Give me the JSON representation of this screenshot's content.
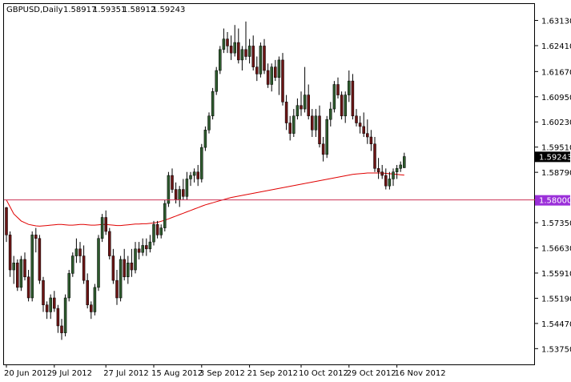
{
  "header": {
    "symbol": "GBPUSD,Daily",
    "open": "1.58917",
    "high": "1.59351",
    "low": "1.58912",
    "close": "1.59243"
  },
  "chart_data": {
    "type": "candlestick",
    "timeframe": "Daily",
    "ylim": [
      1.533,
      1.636
    ],
    "y_ticks": [
      "1.63130",
      "1.62410",
      "1.61670",
      "1.60950",
      "1.60230",
      "1.59510",
      "1.58790",
      "1.58070",
      "1.57350",
      "1.56630",
      "1.55910",
      "1.55190",
      "1.54470",
      "1.53750"
    ],
    "x_ticks": [
      {
        "label": "20 Jun 2012",
        "index": 0
      },
      {
        "label": "9 Jul 2012",
        "index": 13
      },
      {
        "label": "27 Jul 2012",
        "index": 27
      },
      {
        "label": "15 Aug 2012",
        "index": 40
      },
      {
        "label": "3 Sep 2012",
        "index": 53
      },
      {
        "label": "21 Sep 2012",
        "index": 66
      },
      {
        "label": "10 Oct 2012",
        "index": 80
      },
      {
        "label": "29 Oct 2012",
        "index": 93
      },
      {
        "label": "16 Nov 2012",
        "index": 106
      }
    ],
    "current_price": {
      "label": "1.59243",
      "value": 1.59243
    },
    "horizontal_line": {
      "label": "1.58000",
      "value": 1.58
    },
    "colors": {
      "up": "#2d5a2d",
      "down": "#6b1414",
      "ma": "#e00000",
      "line": "#cc3355",
      "line_label_bg": "#9b30d9"
    },
    "candles": [
      [
        1.5778,
        1.578,
        1.568,
        1.57
      ],
      [
        1.57,
        1.571,
        1.558,
        1.56
      ],
      [
        1.56,
        1.564,
        1.556,
        1.562
      ],
      [
        1.562,
        1.563,
        1.554,
        1.555
      ],
      [
        1.555,
        1.564,
        1.554,
        1.563
      ],
      [
        1.563,
        1.565,
        1.557,
        1.558
      ],
      [
        1.558,
        1.56,
        1.551,
        1.552
      ],
      [
        1.552,
        1.571,
        1.551,
        1.57
      ],
      [
        1.57,
        1.572,
        1.565,
        1.569
      ],
      [
        1.569,
        1.57,
        1.556,
        1.557
      ],
      [
        1.557,
        1.558,
        1.548,
        1.55
      ],
      [
        1.55,
        1.551,
        1.546,
        1.548
      ],
      [
        1.548,
        1.553,
        1.546,
        1.552
      ],
      [
        1.552,
        1.554,
        1.548,
        1.549
      ],
      [
        1.549,
        1.55,
        1.542,
        1.544
      ],
      [
        1.544,
        1.546,
        1.54,
        1.542
      ],
      [
        1.542,
        1.553,
        1.541,
        1.552
      ],
      [
        1.552,
        1.56,
        1.551,
        1.559
      ],
      [
        1.559,
        1.565,
        1.558,
        1.564
      ],
      [
        1.564,
        1.569,
        1.562,
        1.566
      ],
      [
        1.566,
        1.568,
        1.562,
        1.564
      ],
      [
        1.564,
        1.567,
        1.556,
        1.557
      ],
      [
        1.557,
        1.559,
        1.549,
        1.55
      ],
      [
        1.55,
        1.551,
        1.546,
        1.548
      ],
      [
        1.548,
        1.556,
        1.547,
        1.555
      ],
      [
        1.555,
        1.57,
        1.554,
        1.569
      ],
      [
        1.569,
        1.576,
        1.568,
        1.575
      ],
      [
        1.575,
        1.577,
        1.57,
        1.571
      ],
      [
        1.571,
        1.572,
        1.563,
        1.564
      ],
      [
        1.564,
        1.566,
        1.556,
        1.557
      ],
      [
        1.557,
        1.56,
        1.55,
        1.552
      ],
      [
        1.552,
        1.564,
        1.551,
        1.563
      ],
      [
        1.563,
        1.566,
        1.557,
        1.558
      ],
      [
        1.558,
        1.564,
        1.556,
        1.562
      ],
      [
        1.562,
        1.566,
        1.558,
        1.56
      ],
      [
        1.56,
        1.568,
        1.559,
        1.566
      ],
      [
        1.566,
        1.568,
        1.563,
        1.565
      ],
      [
        1.565,
        1.569,
        1.564,
        1.567
      ],
      [
        1.567,
        1.569,
        1.564,
        1.566
      ],
      [
        1.566,
        1.57,
        1.565,
        1.568
      ],
      [
        1.568,
        1.574,
        1.567,
        1.573
      ],
      [
        1.573,
        1.574,
        1.569,
        1.57
      ],
      [
        1.57,
        1.573,
        1.569,
        1.572
      ],
      [
        1.572,
        1.58,
        1.571,
        1.579
      ],
      [
        1.579,
        1.588,
        1.578,
        1.587
      ],
      [
        1.587,
        1.589,
        1.582,
        1.583
      ],
      [
        1.583,
        1.585,
        1.579,
        1.58
      ],
      [
        1.58,
        1.584,
        1.578,
        1.583
      ],
      [
        1.583,
        1.586,
        1.58,
        1.581
      ],
      [
        1.581,
        1.588,
        1.58,
        1.586
      ],
      [
        1.586,
        1.588,
        1.584,
        1.587
      ],
      [
        1.587,
        1.589,
        1.585,
        1.588
      ],
      [
        1.588,
        1.59,
        1.584,
        1.586
      ],
      [
        1.586,
        1.596,
        1.585,
        1.595
      ],
      [
        1.595,
        1.601,
        1.594,
        1.6
      ],
      [
        1.6,
        1.605,
        1.599,
        1.604
      ],
      [
        1.604,
        1.612,
        1.603,
        1.611
      ],
      [
        1.611,
        1.618,
        1.61,
        1.617
      ],
      [
        1.617,
        1.624,
        1.616,
        1.623
      ],
      [
        1.623,
        1.629,
        1.622,
        1.626
      ],
      [
        1.626,
        1.628,
        1.622,
        1.624
      ],
      [
        1.624,
        1.627,
        1.62,
        1.622
      ],
      [
        1.622,
        1.63,
        1.621,
        1.625
      ],
      [
        1.625,
        1.629,
        1.619,
        1.62
      ],
      [
        1.62,
        1.624,
        1.617,
        1.623
      ],
      [
        1.623,
        1.631,
        1.62,
        1.621
      ],
      [
        1.621,
        1.626,
        1.619,
        1.624
      ],
      [
        1.624,
        1.627,
        1.617,
        1.618
      ],
      [
        1.618,
        1.621,
        1.614,
        1.616
      ],
      [
        1.616,
        1.625,
        1.615,
        1.624
      ],
      [
        1.624,
        1.626,
        1.616,
        1.617
      ],
      [
        1.617,
        1.619,
        1.612,
        1.613
      ],
      [
        1.613,
        1.619,
        1.611,
        1.618
      ],
      [
        1.618,
        1.62,
        1.614,
        1.615
      ],
      [
        1.615,
        1.621,
        1.61,
        1.62
      ],
      [
        1.62,
        1.622,
        1.607,
        1.608
      ],
      [
        1.608,
        1.61,
        1.6,
        1.602
      ],
      [
        1.602,
        1.604,
        1.597,
        1.599
      ],
      [
        1.599,
        1.606,
        1.598,
        1.604
      ],
      [
        1.604,
        1.609,
        1.603,
        1.607
      ],
      [
        1.607,
        1.611,
        1.604,
        1.606
      ],
      [
        1.606,
        1.618,
        1.605,
        1.61
      ],
      [
        1.61,
        1.613,
        1.603,
        1.604
      ],
      [
        1.604,
        1.606,
        1.598,
        1.6
      ],
      [
        1.6,
        1.606,
        1.598,
        1.604
      ],
      [
        1.604,
        1.607,
        1.595,
        1.596
      ],
      [
        1.596,
        1.598,
        1.591,
        1.593
      ],
      [
        1.593,
        1.604,
        1.592,
        1.603
      ],
      [
        1.603,
        1.608,
        1.601,
        1.606
      ],
      [
        1.606,
        1.614,
        1.605,
        1.613
      ],
      [
        1.613,
        1.615,
        1.609,
        1.61
      ],
      [
        1.61,
        1.611,
        1.603,
        1.604
      ],
      [
        1.604,
        1.611,
        1.602,
        1.61
      ],
      [
        1.61,
        1.617,
        1.608,
        1.614
      ],
      [
        1.614,
        1.616,
        1.603,
        1.604
      ],
      [
        1.604,
        1.606,
        1.601,
        1.602
      ],
      [
        1.602,
        1.604,
        1.599,
        1.601
      ],
      [
        1.601,
        1.605,
        1.598,
        1.599
      ],
      [
        1.599,
        1.603,
        1.596,
        1.598
      ],
      [
        1.598,
        1.6,
        1.594,
        1.596
      ],
      [
        1.596,
        1.598,
        1.588,
        1.589
      ],
      [
        1.589,
        1.592,
        1.586,
        1.588
      ],
      [
        1.588,
        1.59,
        1.586,
        1.587
      ],
      [
        1.587,
        1.589,
        1.583,
        1.584
      ],
      [
        1.584,
        1.588,
        1.583,
        1.586
      ],
      [
        1.586,
        1.589,
        1.584,
        1.588
      ],
      [
        1.588,
        1.59,
        1.586,
        1.589
      ],
      [
        1.589,
        1.591,
        1.588,
        1.59
      ],
      [
        1.5892,
        1.5935,
        1.5891,
        1.5924
      ]
    ],
    "moving_average": [
      1.58,
      1.578,
      1.576,
      1.575,
      1.574,
      1.5735,
      1.573,
      1.5728,
      1.5726,
      1.5725,
      1.5726,
      1.5727,
      1.5728,
      1.5729,
      1.573,
      1.573,
      1.5729,
      1.5728,
      1.5728,
      1.5729,
      1.573,
      1.573,
      1.5729,
      1.5728,
      1.5728,
      1.5729,
      1.573,
      1.573,
      1.5729,
      1.5728,
      1.5727,
      1.5727,
      1.5728,
      1.5729,
      1.573,
      1.5731,
      1.5731,
      1.5732,
      1.5732,
      1.5733,
      1.5734,
      1.5736,
      1.5739,
      1.5742,
      1.5746,
      1.575,
      1.5754,
      1.5758,
      1.5762,
      1.5766,
      1.577,
      1.5774,
      1.5778,
      1.5782,
      1.5786,
      1.5789,
      1.5792,
      1.5795,
      1.5798,
      1.5801,
      1.5804,
      1.5807,
      1.5809,
      1.5811,
      1.5813,
      1.5815,
      1.5817,
      1.5819,
      1.5821,
      1.5823,
      1.5825,
      1.5827,
      1.5829,
      1.5831,
      1.5833,
      1.5835,
      1.5837,
      1.5839,
      1.5841,
      1.5843,
      1.5845,
      1.5847,
      1.5849,
      1.5851,
      1.5853,
      1.5855,
      1.5857,
      1.5859,
      1.5861,
      1.5863,
      1.5865,
      1.5867,
      1.5869,
      1.5871,
      1.5873,
      1.5874,
      1.5875,
      1.5876,
      1.5877,
      1.5877,
      1.5877,
      1.5877,
      1.5877,
      1.5876,
      1.5875,
      1.5874,
      1.5873,
      1.5872,
      1.5871
    ]
  }
}
